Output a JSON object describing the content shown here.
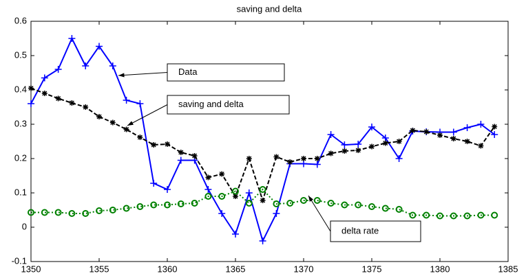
{
  "chart_data": {
    "type": "line",
    "title": "saving and delta",
    "x": [
      1350,
      1351,
      1352,
      1353,
      1354,
      1355,
      1356,
      1357,
      1358,
      1359,
      1360,
      1361,
      1362,
      1363,
      1364,
      1365,
      1366,
      1367,
      1368,
      1369,
      1370,
      1371,
      1372,
      1373,
      1374,
      1375,
      1376,
      1377,
      1378,
      1379,
      1380,
      1381,
      1382,
      1383,
      1384
    ],
    "series": [
      {
        "name": "Data",
        "color": "#0000ff",
        "linestyle": "solid",
        "marker": "plus",
        "values": [
          0.36,
          0.435,
          0.46,
          0.55,
          0.47,
          0.527,
          0.47,
          0.37,
          0.36,
          0.128,
          0.11,
          0.195,
          0.195,
          0.11,
          0.04,
          -0.02,
          0.1,
          -0.04,
          0.04,
          0.185,
          0.185,
          0.183,
          0.27,
          0.24,
          0.242,
          0.292,
          0.26,
          0.2,
          0.28,
          0.278,
          0.277,
          0.277,
          0.29,
          0.3,
          0.27
        ]
      },
      {
        "name": "saving and delta",
        "color": "#000000",
        "linestyle": "dashed",
        "marker": "star",
        "values": [
          0.405,
          0.39,
          0.375,
          0.362,
          0.35,
          0.322,
          0.305,
          0.285,
          0.262,
          0.24,
          0.242,
          0.218,
          0.208,
          0.145,
          0.155,
          0.09,
          0.2,
          0.078,
          0.205,
          0.19,
          0.2,
          0.2,
          0.215,
          0.222,
          0.224,
          0.235,
          0.245,
          0.25,
          0.282,
          0.278,
          0.268,
          0.258,
          0.25,
          0.237,
          0.293
        ]
      },
      {
        "name": "delta rate",
        "color": "#008000",
        "linestyle": "dotted",
        "marker": "circle",
        "values": [
          0.043,
          0.043,
          0.043,
          0.04,
          0.04,
          0.048,
          0.05,
          0.055,
          0.06,
          0.065,
          0.065,
          0.068,
          0.07,
          0.09,
          0.09,
          0.105,
          0.07,
          0.11,
          0.068,
          0.07,
          0.078,
          0.078,
          0.07,
          0.065,
          0.065,
          0.06,
          0.055,
          0.052,
          0.035,
          0.035,
          0.033,
          0.033,
          0.033,
          0.035,
          0.035
        ]
      }
    ],
    "annotations": [
      "Data",
      "saving and delta",
      "delta rate"
    ],
    "xlim": [
      1350,
      1385
    ],
    "xticks": [
      1350,
      1355,
      1360,
      1365,
      1370,
      1375,
      1380,
      1385
    ],
    "ylim": [
      -0.1,
      0.6
    ],
    "yticks": [
      -0.1,
      0,
      0.1,
      0.2,
      0.3,
      0.4,
      0.5,
      0.6
    ],
    "grid": false
  }
}
